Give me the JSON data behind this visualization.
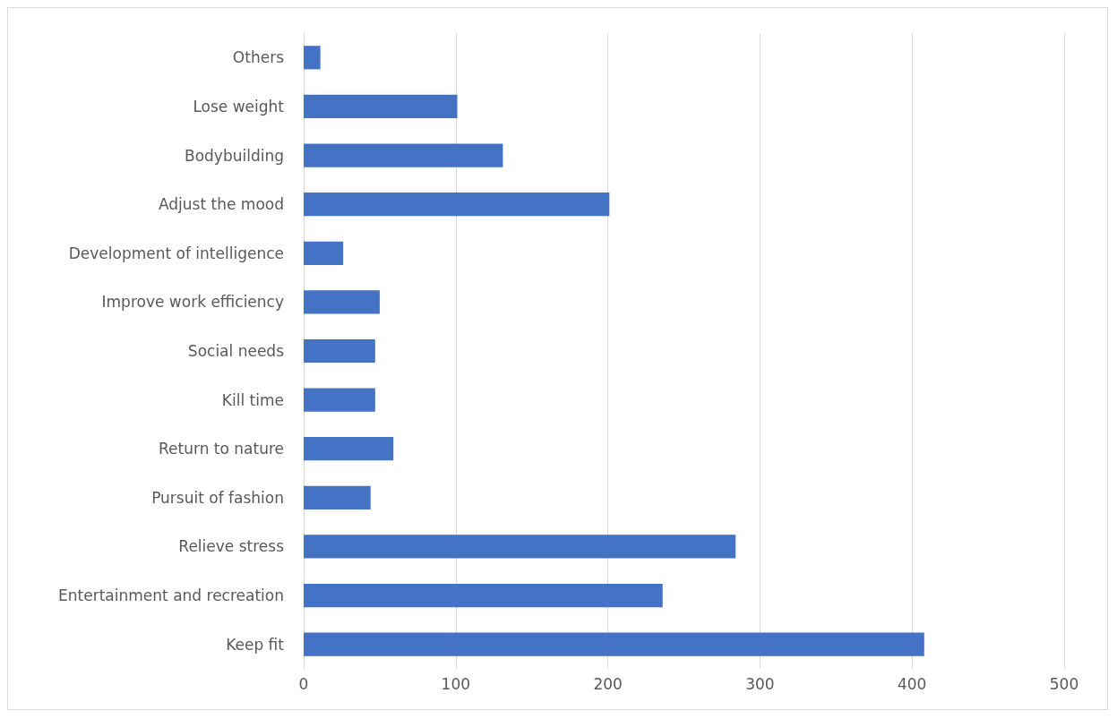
{
  "chart_data": {
    "type": "bar",
    "orientation": "horizontal",
    "categories": [
      "Others",
      "Lose weight",
      "Bodybuilding",
      "Adjust the mood",
      "Development of intelligence",
      "Improve work efficiency",
      "Social needs",
      "Kill time",
      "Return to nature",
      "Pursuit of fashion",
      "Relieve stress",
      "Entertainment and recreation",
      "Keep fit"
    ],
    "values": [
      11,
      101,
      131,
      201,
      26,
      50,
      47,
      47,
      59,
      44,
      284,
      236,
      408
    ],
    "color": "#4472c4",
    "xlim": [
      0,
      500
    ],
    "xticks": [
      0,
      100,
      200,
      300,
      400,
      500
    ],
    "grid": "x"
  }
}
